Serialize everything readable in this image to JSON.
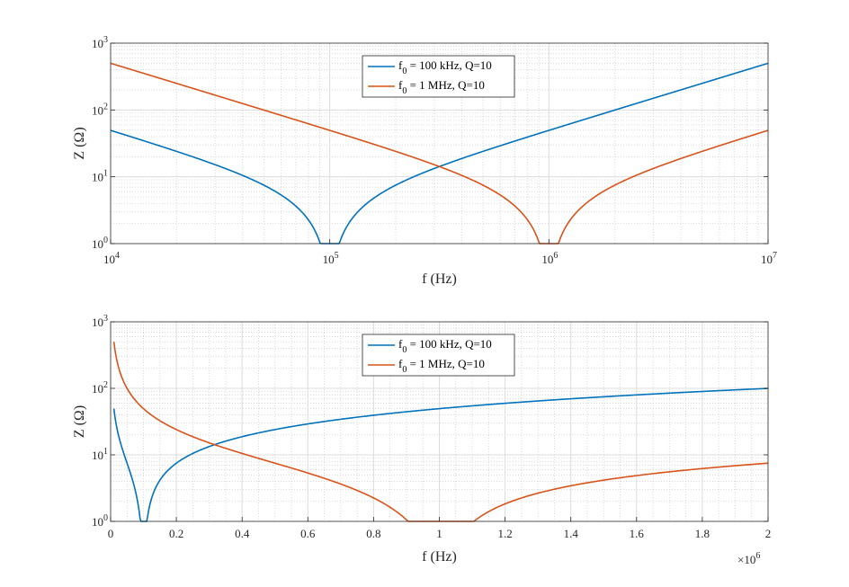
{
  "chart_data": [
    {
      "type": "line",
      "xscale": "log",
      "yscale": "log",
      "xlim": [
        10000,
        10000000
      ],
      "ylim": [
        1,
        1000
      ],
      "xlabel": "f (Hz)",
      "ylabel": "Z (Ω)",
      "grid": true,
      "legend_position": "top-center",
      "x_tick_labels": [
        {
          "base": "10",
          "exp": "4"
        },
        {
          "base": "10",
          "exp": "5"
        },
        {
          "base": "10",
          "exp": "6"
        },
        {
          "base": "10",
          "exp": "7"
        }
      ],
      "y_tick_labels": [
        {
          "base": "10",
          "exp": "0"
        },
        {
          "base": "10",
          "exp": "1"
        },
        {
          "base": "10",
          "exp": "2"
        },
        {
          "base": "10",
          "exp": "3"
        }
      ],
      "series": [
        {
          "name": "f0 = 100 kHz, Q=10",
          "legend_base": "f",
          "legend_sub": "0",
          "legend_rest": " = 100 kHz, Q=10",
          "color": "#0072BD",
          "x": [
            10000,
            20000,
            50000,
            80000,
            100000,
            120000,
            200000,
            500000,
            1000000,
            2000000,
            5000000,
            10000000
          ],
          "y": [
            49.5,
            24.0,
            7.5,
            2.25,
            1.0,
            1.83,
            7.5,
            24.0,
            49.5,
            100.0,
            250.0,
            499.9
          ]
        },
        {
          "name": "f0 = 1 MHz, Q=10",
          "legend_base": "f",
          "legend_sub": "0",
          "legend_rest": " = 1 MHz, Q=10",
          "color": "#D95319",
          "x": [
            10000,
            20000,
            50000,
            100000,
            200000,
            500000,
            800000,
            1000000,
            1200000,
            2000000,
            5000000,
            10000000
          ],
          "y": [
            499.9,
            250.0,
            100.0,
            49.5,
            24.0,
            7.5,
            2.25,
            1.0,
            1.83,
            7.5,
            24.0,
            49.5
          ]
        }
      ]
    },
    {
      "type": "line",
      "xscale": "linear",
      "yscale": "log",
      "xlim": [
        0,
        2000000
      ],
      "ylim": [
        1,
        1000
      ],
      "xlabel": "f (Hz)",
      "ylabel": "Z (Ω)",
      "grid": true,
      "legend_position": "top-center",
      "x_exponent_label": {
        "prefix": "×",
        "base": "10",
        "exp": "6"
      },
      "x_tick_labels": [
        "0",
        "0.2",
        "0.4",
        "0.6",
        "0.8",
        "1",
        "1.2",
        "1.4",
        "1.6",
        "1.8",
        "2"
      ],
      "y_tick_labels": [
        {
          "base": "10",
          "exp": "0"
        },
        {
          "base": "10",
          "exp": "1"
        },
        {
          "base": "10",
          "exp": "2"
        },
        {
          "base": "10",
          "exp": "3"
        }
      ],
      "series": [
        {
          "name": "f0 = 100 kHz, Q=10",
          "legend_base": "f",
          "legend_sub": "0",
          "legend_rest": " = 100 kHz, Q=10",
          "color": "#0072BD",
          "x": [
            10000,
            30000,
            60000,
            100000,
            150000,
            300000,
            600000,
            1000000,
            1500000,
            2000000
          ],
          "y": [
            49.5,
            15.0,
            6.0,
            1.0,
            5.8,
            15.0,
            30.0,
            49.5,
            74.7,
            100.0
          ]
        },
        {
          "name": "f0 = 1 MHz, Q=10",
          "legend_base": "f",
          "legend_sub": "0",
          "legend_rest": " = 1 MHz, Q=10",
          "color": "#D95319",
          "x": [
            10000,
            50000,
            100000,
            300000,
            600000,
            800000,
            1000000,
            1200000,
            1500000,
            2000000
          ],
          "y": [
            499.9,
            100.0,
            49.5,
            15.0,
            5.0,
            2.25,
            1.0,
            1.83,
            4.2,
            7.5
          ]
        }
      ]
    }
  ]
}
